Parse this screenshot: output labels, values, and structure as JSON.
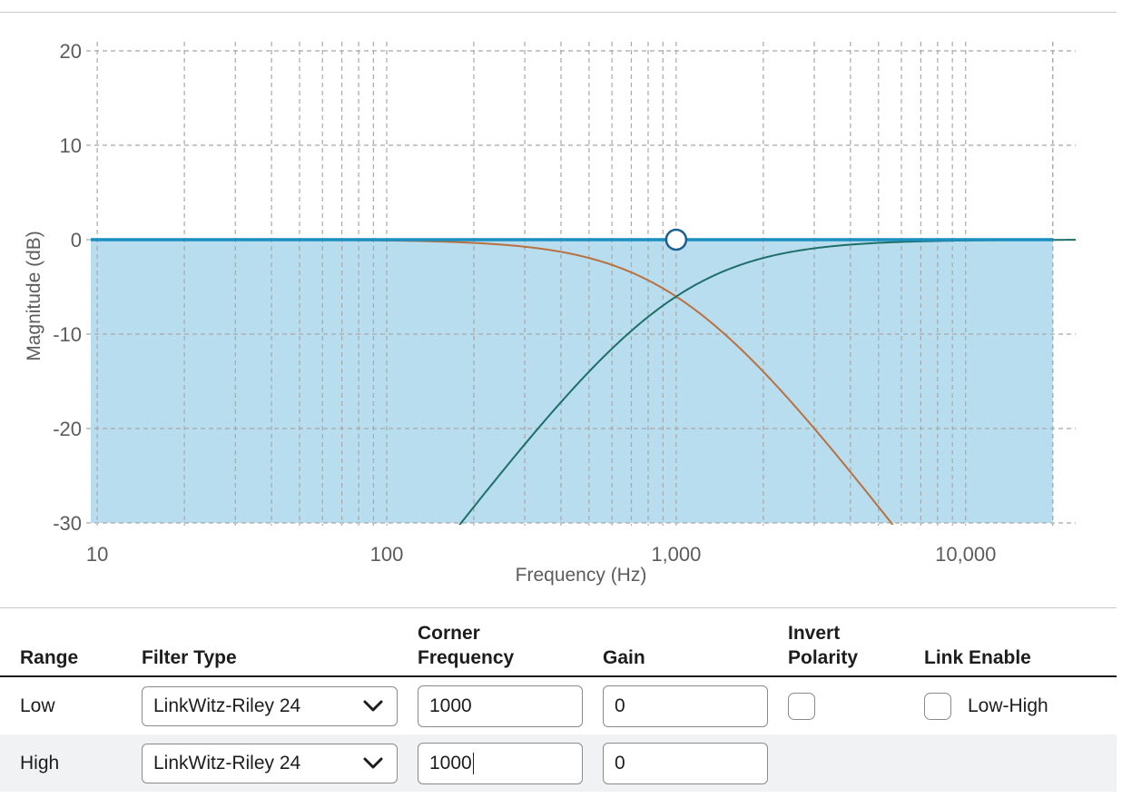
{
  "chart_data": {
    "type": "line",
    "xscale": "log",
    "xlim": [
      9.5,
      24000
    ],
    "ylim": [
      -30,
      20
    ],
    "x_ticks": [
      10,
      100,
      1000,
      10000
    ],
    "x_tick_labels": [
      "10",
      "100",
      "1,000",
      "10,000"
    ],
    "y_ticks": [
      20,
      10,
      0,
      -10,
      -20,
      -30
    ],
    "y_tick_labels": [
      "20",
      "10",
      "0",
      "-10",
      "-20",
      "-30"
    ],
    "xlabel": "Frequency (Hz)",
    "ylabel": "Magnitude (dB)",
    "grid": true,
    "series": [
      {
        "type": "lowpass",
        "corner_hz": 1000,
        "order": 4,
        "color": "#b8713f"
      },
      {
        "type": "highpass",
        "corner_hz": 1000,
        "order": 4,
        "color": "#1e6e6a"
      },
      {
        "type": "sum",
        "value_db": 0,
        "color": "#1a8fc0",
        "fill": "#b8ddee"
      }
    ],
    "handle": {
      "x": 1000,
      "y": 0
    }
  },
  "table": {
    "headers": {
      "range": "Range",
      "filter_type": "Filter Type",
      "corner_line1": "Corner",
      "corner_line2": "Frequency",
      "gain": "Gain",
      "invert_line1": "Invert",
      "invert_line2": "Polarity",
      "link": "Link Enable"
    },
    "rows": [
      {
        "range": "Low",
        "filter_type": "LinkWitz-Riley 24",
        "corner": "1000",
        "gain": "0",
        "link_label": "Low-High"
      },
      {
        "range": "High",
        "filter_type": "LinkWitz-Riley 24",
        "corner": "1000",
        "gain": "0"
      }
    ]
  }
}
